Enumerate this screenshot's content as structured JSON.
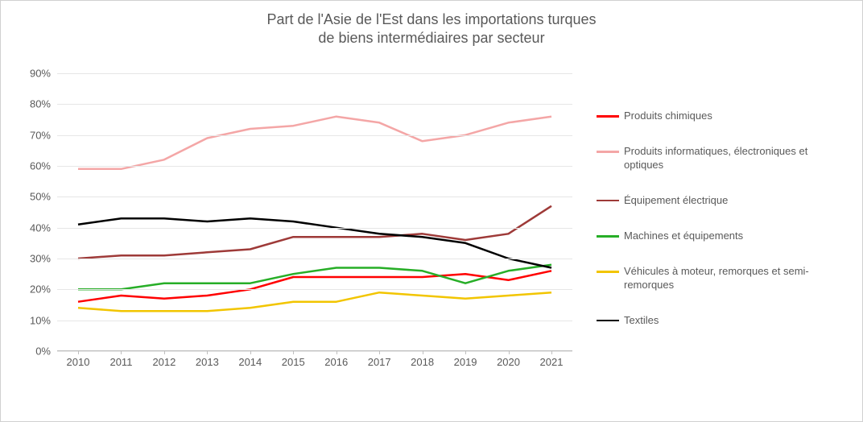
{
  "chart": {
    "type": "line",
    "title_line1": "Part de l'Asie de l'Est dans les importations turques",
    "title_line2": "de biens intermédiaires par secteur",
    "title_fontsize": 18,
    "title_color": "#595959",
    "background_color": "#ffffff",
    "border_color": "#d0d0d0",
    "grid_color": "#e6e6e6",
    "axis_line_color": "#bfbfbf",
    "axis_label_color": "#595959",
    "axis_label_fontsize": 13,
    "x_labels": [
      "2010",
      "2011",
      "2012",
      "2013",
      "2014",
      "2015",
      "2016",
      "2017",
      "2018",
      "2019",
      "2020",
      "2021"
    ],
    "ylim": [
      0,
      90
    ],
    "ytick_step": 10,
    "ytick_format": "percent",
    "line_width": 2.5,
    "series": [
      {
        "name": "Produits chimiques",
        "color": "#ff0000",
        "values": [
          16,
          18,
          17,
          18,
          20,
          24,
          24,
          24,
          24,
          25,
          23,
          26
        ]
      },
      {
        "name": "Produits informatiques, électroniques et optiques",
        "color": "#f4a6a6",
        "values": [
          59,
          59,
          62,
          69,
          72,
          73,
          76,
          74,
          68,
          70,
          74,
          76
        ]
      },
      {
        "name": "Équipement électrique",
        "color": "#9e3a38",
        "values": [
          30,
          31,
          31,
          32,
          33,
          37,
          37,
          37,
          38,
          36,
          38,
          47
        ]
      },
      {
        "name": "Machines et équipements",
        "color": "#27ae27",
        "values": [
          20,
          20,
          22,
          22,
          22,
          25,
          27,
          27,
          26,
          22,
          26,
          28
        ]
      },
      {
        "name": "Véhicules à moteur, remorques et semi-remorques",
        "color": "#f2c500",
        "values": [
          14,
          13,
          13,
          13,
          14,
          16,
          16,
          19,
          18,
          17,
          18,
          19
        ]
      },
      {
        "name": "Textiles",
        "color": "#000000",
        "values": [
          41,
          43,
          43,
          42,
          43,
          42,
          40,
          38,
          37,
          35,
          30,
          27
        ]
      }
    ]
  }
}
